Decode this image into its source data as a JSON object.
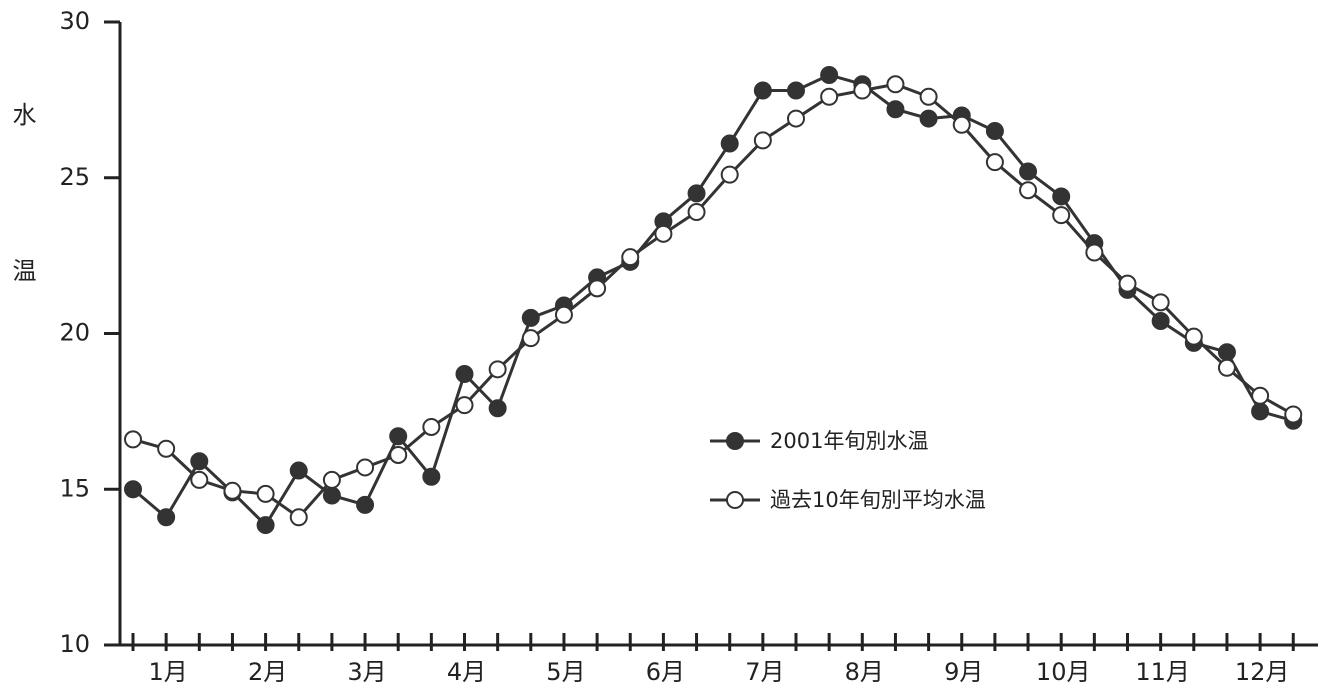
{
  "chart_data": {
    "type": "line",
    "y_label": "水温",
    "categories": [
      null,
      "1月",
      null,
      null,
      "2月",
      null,
      null,
      "3月",
      null,
      null,
      "4月",
      null,
      null,
      "5月",
      null,
      null,
      "6月",
      null,
      null,
      "7月",
      null,
      null,
      "8月",
      null,
      null,
      "9月",
      null,
      null,
      "10月",
      null,
      null,
      "11月",
      null,
      null,
      "12月",
      null
    ],
    "series": [
      {
        "name": "2001年旬別水温",
        "color": "#333333",
        "values": [
          15.0,
          14.1,
          15.9,
          14.9,
          13.85,
          15.6,
          14.8,
          14.5,
          16.7,
          15.4,
          18.7,
          17.6,
          20.5,
          20.9,
          21.8,
          22.3,
          23.6,
          24.5,
          26.1,
          27.8,
          27.8,
          28.3,
          28.0,
          27.2,
          26.9,
          27.0,
          26.5,
          25.2,
          24.4,
          22.9,
          21.4,
          20.4,
          19.7,
          19.4,
          17.5,
          17.2
        ]
      },
      {
        "name": "過去10年旬別平均水温",
        "color": "#ffffff",
        "values": [
          16.6,
          16.3,
          15.3,
          14.95,
          14.85,
          14.1,
          15.3,
          15.7,
          16.1,
          17.0,
          17.7,
          18.85,
          19.85,
          20.6,
          21.45,
          22.45,
          23.2,
          23.9,
          25.1,
          26.2,
          26.9,
          27.6,
          27.8,
          28.0,
          27.6,
          26.7,
          25.5,
          24.6,
          23.8,
          22.6,
          21.6,
          21.0,
          19.9,
          18.9,
          18.0,
          17.4
        ]
      }
    ],
    "ylim": [
      10,
      30
    ],
    "yticks": [
      10,
      15,
      20,
      25,
      30
    ],
    "grid": false
  }
}
